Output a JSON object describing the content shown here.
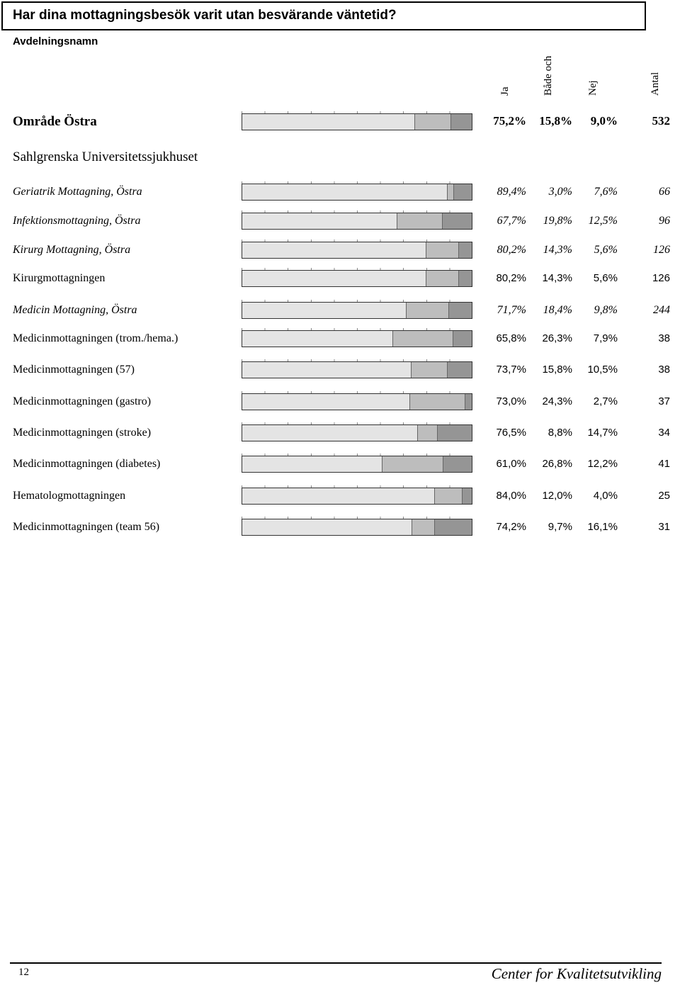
{
  "title": "Har dina mottagningsbesök varit utan besvärande väntetid?",
  "dept_header": "Avdelningsnamn",
  "columns": [
    "Ja",
    "Både och",
    "Nej",
    "Antal"
  ],
  "section_label": "Sahlgrenska Universitetssjukhuset",
  "colors": {
    "ja": "#e4e4e4",
    "both": "#bdbdbd",
    "nej": "#959595"
  },
  "rows": [
    {
      "label": "Område Östra",
      "ja": "75,2%",
      "both": "15,8%",
      "nej": "9,0%",
      "antal": "532",
      "ja_v": 75.2,
      "both_v": 15.8,
      "nej_v": 9.0
    },
    {
      "label": "Geriatrik Mottagning, Östra",
      "ja": "89,4%",
      "both": "3,0%",
      "nej": "7,6%",
      "antal": "66",
      "ja_v": 89.4,
      "both_v": 3.0,
      "nej_v": 7.6
    },
    {
      "label": "Infektionsmottagning, Östra",
      "ja": "67,7%",
      "both": "19,8%",
      "nej": "12,5%",
      "antal": "96",
      "ja_v": 67.7,
      "both_v": 19.8,
      "nej_v": 12.5
    },
    {
      "label": "Kirurg Mottagning, Östra",
      "ja": "80,2%",
      "both": "14,3%",
      "nej": "5,6%",
      "antal": "126",
      "ja_v": 80.2,
      "both_v": 14.3,
      "nej_v": 5.6
    },
    {
      "label": "Kirurgmottagningen",
      "ja": "80,2%",
      "both": "14,3%",
      "nej": "5,6%",
      "antal": "126",
      "ja_v": 80.2,
      "both_v": 14.3,
      "nej_v": 5.6
    },
    {
      "label": "Medicin Mottagning, Östra",
      "ja": "71,7%",
      "both": "18,4%",
      "nej": "9,8%",
      "antal": "244",
      "ja_v": 71.7,
      "both_v": 18.4,
      "nej_v": 9.8
    },
    {
      "label": "Medicinmottagningen (trom./hema.)",
      "ja": "65,8%",
      "both": "26,3%",
      "nej": "7,9%",
      "antal": "38",
      "ja_v": 65.8,
      "both_v": 26.3,
      "nej_v": 7.9
    },
    {
      "label": "Medicinmottagningen (57)",
      "ja": "73,7%",
      "both": "15,8%",
      "nej": "10,5%",
      "antal": "38",
      "ja_v": 73.7,
      "both_v": 15.8,
      "nej_v": 10.5
    },
    {
      "label": "Medicinmottagningen (gastro)",
      "ja": "73,0%",
      "both": "24,3%",
      "nej": "2,7%",
      "antal": "37",
      "ja_v": 73.0,
      "both_v": 24.3,
      "nej_v": 2.7
    },
    {
      "label": "Medicinmottagningen (stroke)",
      "ja": "76,5%",
      "both": "8,8%",
      "nej": "14,7%",
      "antal": "34",
      "ja_v": 76.5,
      "both_v": 8.8,
      "nej_v": 14.7
    },
    {
      "label": "Medicinmottagningen (diabetes)",
      "ja": "61,0%",
      "both": "26,8%",
      "nej": "12,2%",
      "antal": "41",
      "ja_v": 61.0,
      "both_v": 26.8,
      "nej_v": 12.2
    },
    {
      "label": "Hematologmottagningen",
      "ja": "84,0%",
      "both": "12,0%",
      "nej": "4,0%",
      "antal": "25",
      "ja_v": 84.0,
      "both_v": 12.0,
      "nej_v": 4.0
    },
    {
      "label": "Medicinmottagningen (team 56)",
      "ja": "74,2%",
      "both": "9,7%",
      "nej": "16,1%",
      "antal": "31",
      "ja_v": 74.2,
      "both_v": 9.7,
      "nej_v": 16.1
    }
  ],
  "footer": {
    "page_number": "12",
    "organization": "Center for Kvalitetsutvikling"
  }
}
